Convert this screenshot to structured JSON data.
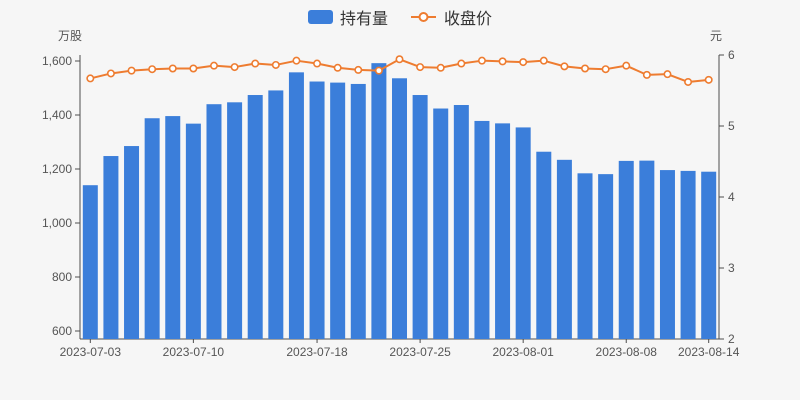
{
  "legend": {
    "holdings_label": "持有量",
    "close_label": "收盘价"
  },
  "colors": {
    "bar": "#3b7eda",
    "line": "#ee7c30",
    "marker_fill": "#ffffff",
    "background": "#f6f6f6",
    "axis_line": "#4d4d4d",
    "tick_text": "#555555",
    "legend_text": "#333333"
  },
  "chart_data": {
    "type": "combo",
    "legend_position": "top",
    "categories": [
      "2023-07-03",
      "2023-07-04",
      "2023-07-05",
      "2023-07-06",
      "2023-07-07",
      "2023-07-10",
      "2023-07-11",
      "2023-07-12",
      "2023-07-13",
      "2023-07-14",
      "2023-07-17",
      "2023-07-18",
      "2023-07-19",
      "2023-07-20",
      "2023-07-21",
      "2023-07-24",
      "2023-07-25",
      "2023-07-26",
      "2023-07-27",
      "2023-07-28",
      "2023-07-31",
      "2023-08-01",
      "2023-08-02",
      "2023-08-03",
      "2023-08-04",
      "2023-08-07",
      "2023-08-08",
      "2023-08-09",
      "2023-08-10",
      "2023-08-11",
      "2023-08-14"
    ],
    "series": [
      {
        "name": "持有量",
        "type": "bar",
        "yaxis": "left",
        "unit": "万股",
        "values": [
          1140,
          1248,
          1285,
          1388,
          1396,
          1368,
          1440,
          1447,
          1474,
          1491,
          1558,
          1524,
          1520,
          1515,
          1592,
          1536,
          1474,
          1424,
          1437,
          1378,
          1369,
          1354,
          1264,
          1234,
          1184,
          1181,
          1230,
          1231,
          1196,
          1193,
          1190
        ]
      },
      {
        "name": "收盘价",
        "type": "line",
        "yaxis": "right",
        "unit": "元",
        "values": [
          5.67,
          5.74,
          5.78,
          5.8,
          5.81,
          5.81,
          5.85,
          5.83,
          5.88,
          5.86,
          5.92,
          5.88,
          5.82,
          5.79,
          5.78,
          5.94,
          5.83,
          5.82,
          5.88,
          5.92,
          5.91,
          5.9,
          5.92,
          5.84,
          5.81,
          5.8,
          5.85,
          5.72,
          5.73,
          5.62,
          5.65
        ]
      }
    ],
    "left_axis": {
      "label": "万股",
      "ticks": [
        600,
        800,
        1000,
        1200,
        1400,
        1600
      ],
      "tick_labels": [
        "600",
        "800",
        "1,000",
        "1,200",
        "1,400",
        "1,600"
      ]
    },
    "right_axis": {
      "label": "元",
      "ticks": [
        2,
        3,
        4,
        5,
        6
      ],
      "tick_labels": [
        "2",
        "3",
        "4",
        "5",
        "6"
      ]
    },
    "x_axis": {
      "shown_labels": [
        "2023-07-03",
        "2023-07-10",
        "2023-07-18",
        "2023-07-25",
        "2023-08-01",
        "2023-08-08",
        "2023-08-14"
      ],
      "shown_label_indices": [
        0,
        5,
        11,
        16,
        21,
        26,
        30
      ]
    },
    "title": ""
  }
}
